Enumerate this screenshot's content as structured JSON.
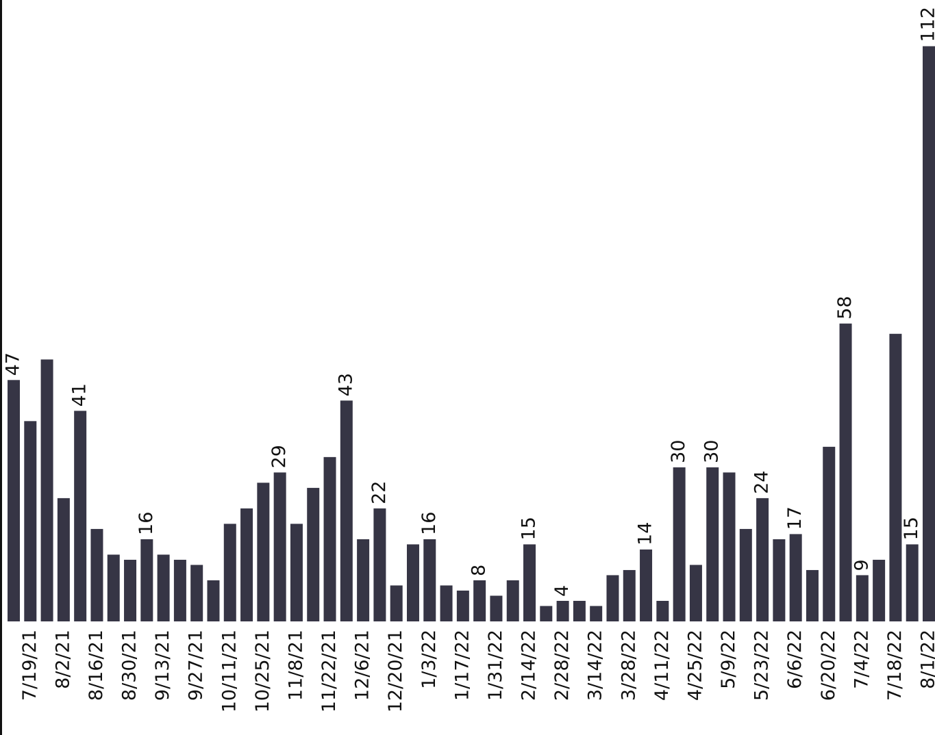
{
  "chart_data": {
    "type": "bar",
    "categories": [
      null,
      "7/19/21",
      null,
      "8/2/21",
      null,
      "8/16/21",
      null,
      "8/30/21",
      null,
      "9/13/21",
      null,
      "9/27/21",
      null,
      "10/11/21",
      null,
      "10/25/21",
      null,
      "11/8/21",
      null,
      "11/22/21",
      null,
      "12/6/21",
      null,
      "12/20/21",
      null,
      "1/3/22",
      null,
      "1/17/22",
      null,
      "1/31/22",
      null,
      "2/14/22",
      null,
      "2/28/22",
      null,
      "3/14/22",
      null,
      "3/28/22",
      null,
      "4/11/22",
      null,
      "4/25/22",
      null,
      "5/9/22",
      null,
      "5/23/22",
      null,
      "6/6/22",
      null,
      "6/20/22",
      null,
      "7/4/22",
      null,
      "7/18/22",
      null,
      "8/1/22"
    ],
    "values": [
      47,
      39,
      51,
      24,
      41,
      18,
      13,
      12,
      16,
      13,
      12,
      11,
      8,
      19,
      22,
      27,
      29,
      19,
      26,
      32,
      43,
      16,
      22,
      7,
      15,
      16,
      7,
      6,
      8,
      5,
      8,
      15,
      3,
      4,
      4,
      3,
      9,
      10,
      14,
      4,
      30,
      11,
      30,
      29,
      18,
      24,
      16,
      17,
      10,
      34,
      58,
      9,
      12,
      56,
      15,
      112
    ],
    "value_labels": [
      "47",
      null,
      null,
      null,
      "41",
      null,
      null,
      null,
      "16",
      null,
      null,
      null,
      null,
      null,
      null,
      null,
      "29",
      null,
      null,
      null,
      "43",
      null,
      "22",
      null,
      null,
      "16",
      null,
      null,
      "8",
      null,
      null,
      "15",
      null,
      "4",
      null,
      null,
      null,
      null,
      "14",
      null,
      "30",
      null,
      "30",
      null,
      null,
      "24",
      null,
      "17",
      null,
      null,
      "58",
      "9",
      null,
      null,
      "15",
      "112"
    ],
    "color": "#363545",
    "ylim": [
      0,
      121
    ]
  }
}
